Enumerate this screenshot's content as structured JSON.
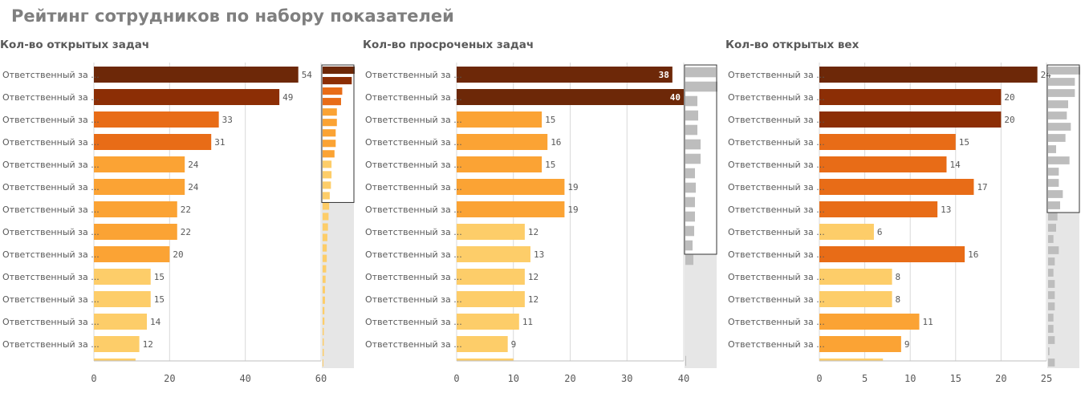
{
  "page_title": "Рейтинг сотрудников по набору показателей",
  "chart_data": [
    {
      "type": "bar",
      "orientation": "horizontal",
      "title": "Кол-во открытых задач",
      "categories": [
        "Ответственный за ...",
        "Ответственный за ...",
        "Ответственный за ...",
        "Ответственный за ...",
        "Ответственный за ...",
        "Ответственный за ...",
        "Ответственный за ...",
        "Ответственный за ...",
        "Ответственный за ...",
        "Ответственный за ...",
        "Ответственный за ...",
        "Ответственный за ...",
        "Ответственный за ...",
        "Ответственный за ..."
      ],
      "values": [
        54,
        49,
        33,
        31,
        24,
        24,
        22,
        22,
        20,
        15,
        15,
        14,
        12,
        11
      ],
      "label_inside": false,
      "xlim": [
        0,
        60
      ],
      "xticks": [
        "0",
        "20",
        "40",
        "60"
      ],
      "minichart": {
        "values": [
          54,
          49,
          33,
          31,
          24,
          24,
          22,
          22,
          20,
          15,
          15,
          14,
          12,
          11,
          10,
          9,
          8,
          7,
          7,
          6,
          5,
          4,
          4,
          3,
          3,
          2,
          2,
          2,
          1
        ],
        "max": 54,
        "window_rows": 13
      },
      "colors": {
        "dark": "#6d2808",
        "dark2": "#8c2e05",
        "orange": "#e86c17",
        "mid": "#fba334",
        "light": "#fdcd69",
        "mini_selected": "#e86c17",
        "mini_rest": "#cccccc"
      }
    },
    {
      "type": "bar",
      "orientation": "horizontal",
      "title": "Кол-во просроченых задач",
      "categories": [
        "Ответственный за ...",
        "Ответственный за ...",
        "Ответственный за ...",
        "Ответственный за ...",
        "Ответственный за ...",
        "Ответственный за ...",
        "Ответственный за ...",
        "Ответственный за ...",
        "Ответственный за ...",
        "Ответственный за ...",
        "Ответственный за ...",
        "Ответственный за ...",
        "Ответственный за ...",
        "Ответственный за ..."
      ],
      "values": [
        38,
        40,
        15,
        16,
        15,
        19,
        19,
        12,
        13,
        12,
        12,
        11,
        9,
        10
      ],
      "label_inside": true,
      "xlim": [
        0,
        40
      ],
      "xticks": [
        "0",
        "10",
        "20",
        "30",
        "40"
      ],
      "minichart": {
        "values": [
          38,
          40,
          15,
          16,
          15,
          19,
          19,
          12,
          13,
          12,
          12,
          11,
          9,
          10,
          0,
          0,
          0,
          0,
          0,
          0,
          1
        ],
        "max": 40,
        "window_rows": 13
      },
      "colors": {
        "dark": "#6d2808",
        "dark2": "#8c2e05",
        "orange": "#e86c17",
        "mid": "#fba334",
        "light": "#fdcd69",
        "mini_selected": "#bdbdbd",
        "mini_rest": "#bdbdbd"
      }
    },
    {
      "type": "bar",
      "orientation": "horizontal",
      "title": "Кол-во открытых вех",
      "categories": [
        "Ответственный за ...",
        "Ответственный за ...",
        "Ответственный за ...",
        "Ответственный за ...",
        "Ответственный за ...",
        "Ответственный за ...",
        "Ответственный за ...",
        "Ответственный за ...",
        "Ответственный за ...",
        "Ответственный за ...",
        "Ответственный за ...",
        "Ответственный за ...",
        "Ответственный за ...",
        "Ответственный за ..."
      ],
      "values": [
        24,
        20,
        20,
        15,
        14,
        17,
        13,
        6,
        16,
        8,
        8,
        11,
        9,
        7
      ],
      "label_inside": false,
      "xlim": [
        0,
        25
      ],
      "xticks": [
        "0",
        "5",
        "10",
        "15",
        "20",
        "25"
      ],
      "minichart": {
        "values": [
          24,
          20,
          20,
          15,
          14,
          17,
          13,
          6,
          16,
          8,
          8,
          11,
          9,
          7,
          6,
          4,
          8,
          5,
          4,
          5,
          5,
          5,
          4,
          4,
          5,
          1,
          5
        ],
        "max": 24,
        "window_rows": 13
      },
      "colors": {
        "dark": "#6d2808",
        "dark2": "#8c2e05",
        "orange": "#e86c17",
        "mid": "#fba334",
        "light": "#fdcd69",
        "mini_selected": "#bdbdbd",
        "mini_rest": "#bdbdbd"
      }
    }
  ]
}
